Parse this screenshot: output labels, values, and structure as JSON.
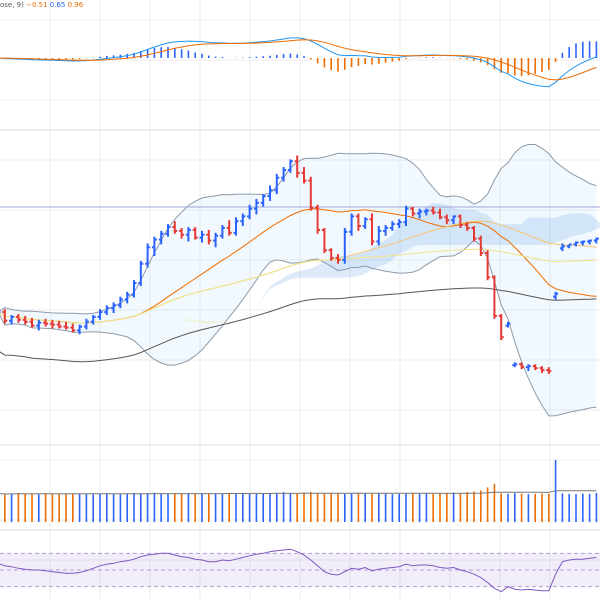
{
  "chart_data": {
    "type": "ohlc",
    "grid": true,
    "candles": [
      [
        95.6,
        96.6,
        95.2,
        96.2
      ],
      [
        96.2,
        96.5,
        95.0,
        95.3
      ],
      [
        95.3,
        95.9,
        94.9,
        95.7
      ],
      [
        95.7,
        96.0,
        95.1,
        95.4
      ],
      [
        95.4,
        95.8,
        94.9,
        95.2
      ],
      [
        95.2,
        95.6,
        94.6,
        94.8
      ],
      [
        94.8,
        95.4,
        94.3,
        95.1
      ],
      [
        95.1,
        95.5,
        94.7,
        95.0
      ],
      [
        95.0,
        95.4,
        94.5,
        94.9
      ],
      [
        94.9,
        95.3,
        94.5,
        94.7
      ],
      [
        94.7,
        95.2,
        94.4,
        94.6
      ],
      [
        94.6,
        95.0,
        94.1,
        94.3
      ],
      [
        94.3,
        94.9,
        93.9,
        94.7
      ],
      [
        94.7,
        95.5,
        94.4,
        95.2
      ],
      [
        95.2,
        95.9,
        94.9,
        95.7
      ],
      [
        95.7,
        96.5,
        95.4,
        96.2
      ],
      [
        96.2,
        96.9,
        95.9,
        96.6
      ],
      [
        96.6,
        97.2,
        96.1,
        96.9
      ],
      [
        96.9,
        97.8,
        96.6,
        97.5
      ],
      [
        97.5,
        98.3,
        97.1,
        98.0
      ],
      [
        98.0,
        99.5,
        97.7,
        99.2
      ],
      [
        99.2,
        101.5,
        98.9,
        101.2
      ],
      [
        101.2,
        103.3,
        100.8,
        102.9
      ],
      [
        102.9,
        104.0,
        102.0,
        103.7
      ],
      [
        103.7,
        104.6,
        103.2,
        104.3
      ],
      [
        104.3,
        105.3,
        104.0,
        105.0
      ],
      [
        105.0,
        105.6,
        104.3,
        104.6
      ],
      [
        104.6,
        104.9,
        103.8,
        104.2
      ],
      [
        104.2,
        105.0,
        103.5,
        104.7
      ],
      [
        104.7,
        105.0,
        103.7,
        103.9
      ],
      [
        103.9,
        104.6,
        103.4,
        104.2
      ],
      [
        104.2,
        104.7,
        103.2,
        103.6
      ],
      [
        103.6,
        104.4,
        102.9,
        104.1
      ],
      [
        104.1,
        105.2,
        103.8,
        104.9
      ],
      [
        104.9,
        105.7,
        104.1,
        104.4
      ],
      [
        104.4,
        106.0,
        104.1,
        105.6
      ],
      [
        105.6,
        106.4,
        105.1,
        106.1
      ],
      [
        106.1,
        107.3,
        105.8,
        106.9
      ],
      [
        106.9,
        107.9,
        106.3,
        107.5
      ],
      [
        107.5,
        108.4,
        107.1,
        108.2
      ],
      [
        108.2,
        109.3,
        107.7,
        108.8
      ],
      [
        108.8,
        110.5,
        108.4,
        110.1
      ],
      [
        110.1,
        111.2,
        109.7,
        110.9
      ],
      [
        110.9,
        112.0,
        110.6,
        111.8
      ],
      [
        111.8,
        112.4,
        110.1,
        110.6
      ],
      [
        110.6,
        111.2,
        109.5,
        109.8
      ],
      [
        109.8,
        110.2,
        106.7,
        107.0
      ],
      [
        107.0,
        107.3,
        104.3,
        104.7
      ],
      [
        104.7,
        104.9,
        102.3,
        102.6
      ],
      [
        102.6,
        102.8,
        101.5,
        101.8
      ],
      [
        101.8,
        102.2,
        101.2,
        101.6
      ],
      [
        101.6,
        104.9,
        101.2,
        104.5
      ],
      [
        104.5,
        106.4,
        104.1,
        106.1
      ],
      [
        106.1,
        106.4,
        104.6,
        105.1
      ],
      [
        105.1,
        106.0,
        104.8,
        105.8
      ],
      [
        105.8,
        106.4,
        103.1,
        103.5
      ],
      [
        103.5,
        105.1,
        103.1,
        104.6
      ],
      [
        104.6,
        105.2,
        104.1,
        104.9
      ],
      [
        104.9,
        105.6,
        104.6,
        105.3
      ],
      [
        105.3,
        105.8,
        104.9,
        105.5
      ],
      [
        105.5,
        107.2,
        105.1,
        106.9
      ],
      [
        106.9,
        107.1,
        106.1,
        106.4
      ],
      [
        106.4,
        106.9,
        105.9,
        106.6
      ],
      [
        106.6,
        106.9,
        106.2,
        106.7
      ],
      [
        106.7,
        107.1,
        106.3,
        106.5
      ],
      [
        106.5,
        106.9,
        105.8,
        106.0
      ],
      [
        106.0,
        106.3,
        105.3,
        105.7
      ],
      [
        105.7,
        106.2,
        105.3,
        106.1
      ],
      [
        106.1,
        106.3,
        104.9,
        105.2
      ],
      [
        105.2,
        105.5,
        104.6,
        104.9
      ],
      [
        104.9,
        105.1,
        103.5,
        103.8
      ],
      [
        103.8,
        104.1,
        102.0,
        102.3
      ],
      [
        102.3,
        102.6,
        99.5,
        99.8
      ],
      [
        99.8,
        100.0,
        95.5,
        95.8
      ],
      [
        95.8,
        96.0,
        93.3,
        93.6
      ],
      [
        94.8,
        95.2,
        94.6,
        95.0
      ],
      [
        90.7,
        91.0,
        90.5,
        90.8
      ],
      [
        90.8,
        91.0,
        90.3,
        90.5
      ],
      [
        90.5,
        90.8,
        90.1,
        90.6
      ],
      [
        90.6,
        90.8,
        90.2,
        90.4
      ],
      [
        90.4,
        90.6,
        89.9,
        90.2
      ],
      [
        90.2,
        90.5,
        89.8,
        90.1
      ],
      [
        97.8,
        98.3,
        97.5,
        98.1
      ],
      [
        102.8,
        103.3,
        102.5,
        103.0
      ],
      [
        103.0,
        103.2,
        102.8,
        103.2
      ],
      [
        103.2,
        103.5,
        103.0,
        103.4
      ],
      [
        103.4,
        103.6,
        103.1,
        103.5
      ],
      [
        103.5,
        103.7,
        103.2,
        103.6
      ],
      [
        103.6,
        103.9,
        103.3,
        103.8
      ]
    ],
    "volume": [
      120,
      115,
      118,
      122,
      119,
      117,
      116,
      121,
      118,
      117,
      119,
      120,
      118,
      117,
      116,
      119,
      121,
      118,
      117,
      120,
      122,
      119,
      121,
      123,
      120,
      118,
      121,
      119,
      120,
      117,
      118,
      119,
      120,
      118,
      121,
      119,
      122,
      120,
      118,
      119,
      121,
      123,
      125,
      122,
      120,
      124,
      126,
      121,
      119,
      122,
      120,
      118,
      121,
      119,
      120,
      118,
      121,
      119,
      117,
      118,
      120,
      122,
      119,
      121,
      118,
      120,
      122,
      124,
      121,
      126,
      128,
      132,
      145,
      160,
      120,
      118,
      121,
      119,
      117,
      118,
      119,
      118,
      260,
      120,
      118,
      117,
      119,
      118,
      122
    ],
    "rsi": [
      58,
      55,
      54,
      52,
      51,
      50,
      50,
      49,
      48,
      47,
      46,
      46,
      47,
      49,
      52,
      55,
      57,
      58,
      60,
      61,
      63,
      66,
      68,
      69,
      70,
      70,
      68,
      66,
      65,
      63,
      62,
      60,
      60,
      62,
      61,
      63,
      65,
      67,
      69,
      70,
      72,
      73,
      74,
      75,
      72,
      68,
      62,
      55,
      48,
      45,
      44,
      48,
      52,
      51,
      53,
      49,
      51,
      52,
      53,
      54,
      57,
      55,
      56,
      56,
      55,
      53,
      52,
      53,
      50,
      48,
      45,
      41,
      35,
      28,
      24,
      30,
      27,
      26,
      27,
      26,
      25,
      25,
      45,
      60,
      62,
      63,
      63,
      64,
      65
    ],
    "macd_values": [
      "−0.51",
      "0.65",
      "0.96"
    ]
  }
}
